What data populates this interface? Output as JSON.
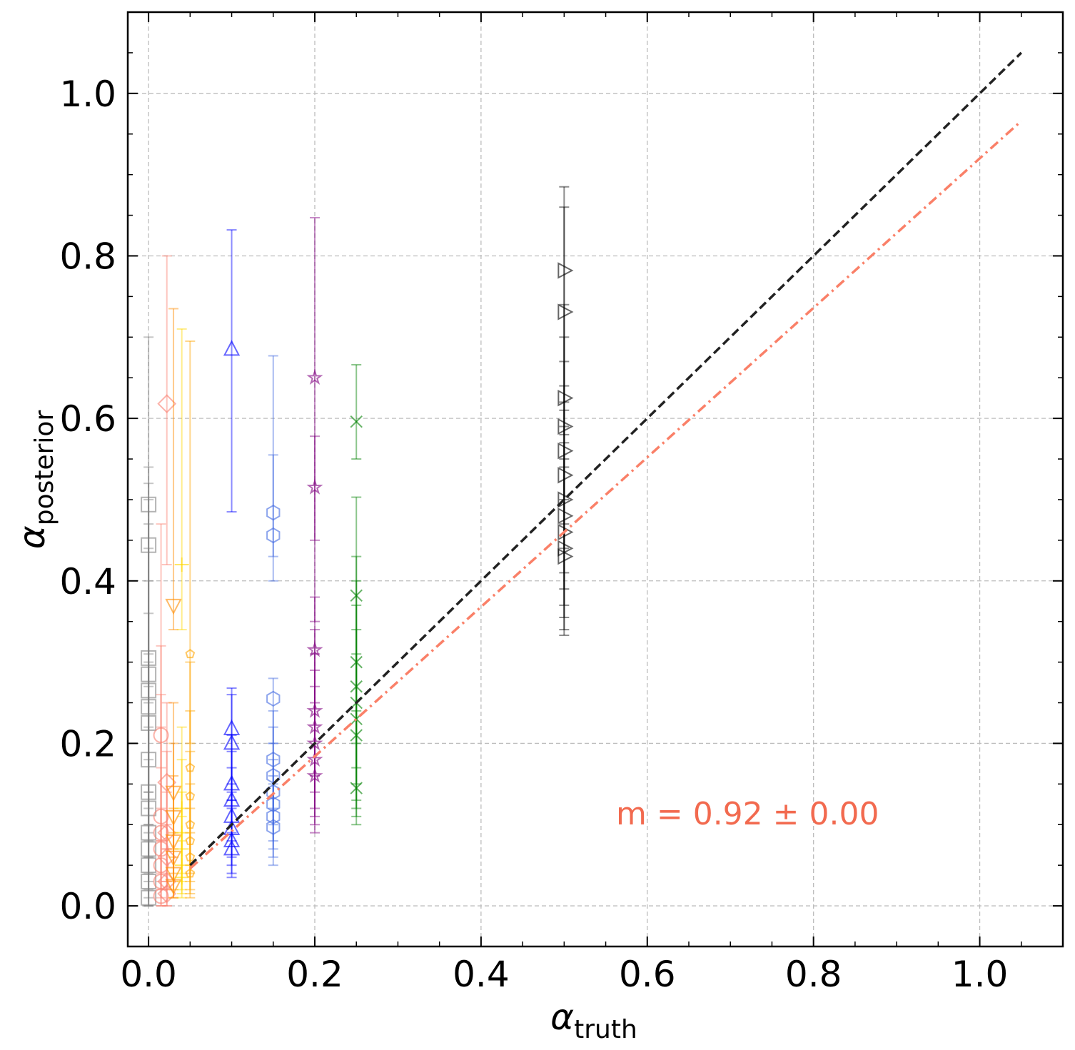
{
  "chart_data": {
    "type": "scatter",
    "xlabel": {
      "symbol": "α",
      "subscript": "truth"
    },
    "ylabel": {
      "symbol": "α",
      "subscript": "posterior"
    },
    "xlim": [
      -0.025,
      1.1
    ],
    "ylim": [
      -0.05,
      1.1
    ],
    "x_ticks": [
      0.0,
      0.2,
      0.4,
      0.6,
      0.8,
      1.0
    ],
    "y_ticks": [
      0.0,
      0.2,
      0.4,
      0.6,
      0.8,
      1.0
    ],
    "x_tick_labels": [
      "0.0",
      "0.2",
      "0.4",
      "0.6",
      "0.8",
      "1.0"
    ],
    "y_tick_labels": [
      "0.0",
      "0.2",
      "0.4",
      "0.6",
      "0.8",
      "1.0"
    ],
    "grid": true,
    "legend": "none",
    "annotation": {
      "text": "m = 0.92 ± 0.00",
      "color": "#f26a4f"
    },
    "reference_lines": [
      {
        "slope": 1.0,
        "intercept": 0.0,
        "x_range": [
          0.05,
          1.05
        ],
        "style": "dashed",
        "color": "#222222"
      },
      {
        "slope": 0.92,
        "intercept": 0.0,
        "x_range": [
          0.05,
          1.05
        ],
        "style": "dashdot",
        "color": "#fa8068"
      }
    ],
    "series": [
      {
        "x": 0.0,
        "color": "#808080",
        "marker": "square",
        "points": [
          [
            0.494,
            0.31,
            0.54
          ],
          [
            0.444,
            0.25,
            0.7
          ],
          [
            0.305,
            0.14,
            0.52
          ],
          [
            0.285,
            0.12,
            0.5
          ],
          [
            0.265,
            0.1,
            0.47
          ],
          [
            0.245,
            0.09,
            0.44
          ],
          [
            0.225,
            0.08,
            0.4
          ],
          [
            0.18,
            0.06,
            0.36
          ],
          [
            0.14,
            0.04,
            0.3
          ],
          [
            0.12,
            0.03,
            0.27
          ],
          [
            0.09,
            0.02,
            0.22
          ],
          [
            0.07,
            0.01,
            0.18
          ],
          [
            0.05,
            0.0,
            0.14
          ],
          [
            0.03,
            0.0,
            0.1
          ],
          [
            0.01,
            0.0,
            0.06
          ]
        ]
      },
      {
        "x": 0.015,
        "color": "#fa8072",
        "marker": "circle",
        "points": [
          [
            0.21,
            0.08,
            0.47
          ],
          [
            0.11,
            0.04,
            0.32
          ],
          [
            0.09,
            0.03,
            0.26
          ],
          [
            0.07,
            0.02,
            0.22
          ],
          [
            0.05,
            0.01,
            0.17
          ],
          [
            0.03,
            0.0,
            0.12
          ],
          [
            0.012,
            0.0,
            0.08
          ]
        ]
      },
      {
        "x": 0.022,
        "color": "#fa8072",
        "marker": "diamond",
        "points": [
          [
            0.618,
            0.42,
            0.8
          ],
          [
            0.152,
            0.07,
            0.25
          ],
          [
            0.09,
            0.03,
            0.19
          ],
          [
            0.06,
            0.02,
            0.14
          ],
          [
            0.03,
            0.0,
            0.1
          ],
          [
            0.015,
            0.0,
            0.07
          ]
        ]
      },
      {
        "x": 0.03,
        "color": "#ff8c00",
        "marker": "triangle_down",
        "points": [
          [
            0.37,
            0.34,
            0.735
          ],
          [
            0.14,
            0.06,
            0.25
          ],
          [
            0.11,
            0.04,
            0.2
          ],
          [
            0.08,
            0.03,
            0.16
          ],
          [
            0.06,
            0.02,
            0.12
          ],
          [
            0.04,
            0.01,
            0.09
          ],
          [
            0.025,
            0.01,
            0.07
          ]
        ]
      },
      {
        "x": 0.04,
        "color": "#ffd700",
        "marker": "plus",
        "points": [
          [
            0.42,
            0.34,
            0.71
          ],
          [
            0.12,
            0.04,
            0.22
          ],
          [
            0.09,
            0.03,
            0.18
          ],
          [
            0.07,
            0.02,
            0.14
          ],
          [
            0.05,
            0.015,
            0.11
          ],
          [
            0.035,
            0.01,
            0.08
          ]
        ]
      },
      {
        "x": 0.05,
        "color": "#ffa500",
        "marker": "pentagon",
        "points": [
          [
            0.31,
            0.2,
            0.695
          ],
          [
            0.17,
            0.05,
            0.3
          ],
          [
            0.135,
            0.04,
            0.24
          ],
          [
            0.1,
            0.03,
            0.19
          ],
          [
            0.08,
            0.02,
            0.15
          ],
          [
            0.06,
            0.015,
            0.12
          ],
          [
            0.04,
            0.01,
            0.09
          ]
        ]
      },
      {
        "x": 0.1,
        "color": "#0000ff",
        "marker": "triangle_up",
        "points": [
          [
            0.685,
            0.485,
            0.832
          ],
          [
            0.218,
            0.14,
            0.268
          ],
          [
            0.2,
            0.13,
            0.26
          ],
          [
            0.15,
            0.09,
            0.21
          ],
          [
            0.13,
            0.08,
            0.19
          ],
          [
            0.11,
            0.06,
            0.17
          ],
          [
            0.095,
            0.05,
            0.15
          ],
          [
            0.08,
            0.04,
            0.13
          ],
          [
            0.07,
            0.035,
            0.12
          ]
        ]
      },
      {
        "x": 0.15,
        "color": "#4169e1",
        "marker": "hexagon",
        "points": [
          [
            0.484,
            0.43,
            0.677
          ],
          [
            0.456,
            0.4,
            0.555
          ],
          [
            0.255,
            0.2,
            0.28
          ],
          [
            0.18,
            0.12,
            0.24
          ],
          [
            0.16,
            0.1,
            0.22
          ],
          [
            0.14,
            0.08,
            0.2
          ],
          [
            0.125,
            0.07,
            0.18
          ],
          [
            0.11,
            0.06,
            0.16
          ],
          [
            0.097,
            0.05,
            0.15
          ]
        ]
      },
      {
        "x": 0.2,
        "color": "#800080",
        "marker": "star",
        "points": [
          [
            0.65,
            0.45,
            0.847
          ],
          [
            0.515,
            0.35,
            0.578
          ],
          [
            0.315,
            0.16,
            0.38
          ],
          [
            0.24,
            0.14,
            0.34
          ],
          [
            0.22,
            0.12,
            0.31
          ],
          [
            0.2,
            0.11,
            0.29
          ],
          [
            0.18,
            0.1,
            0.27
          ],
          [
            0.16,
            0.09,
            0.25
          ]
        ]
      },
      {
        "x": 0.25,
        "color": "#008000",
        "marker": "x",
        "points": [
          [
            0.596,
            0.55,
            0.666
          ],
          [
            0.382,
            0.2,
            0.503
          ],
          [
            0.3,
            0.17,
            0.43
          ],
          [
            0.27,
            0.15,
            0.4
          ],
          [
            0.25,
            0.13,
            0.37
          ],
          [
            0.23,
            0.12,
            0.34
          ],
          [
            0.21,
            0.11,
            0.31
          ],
          [
            0.145,
            0.1,
            0.24
          ]
        ]
      },
      {
        "x": 0.5,
        "color": "#000000",
        "marker": "triangle_right",
        "points": [
          [
            0.782,
            0.62,
            0.885
          ],
          [
            0.731,
            0.58,
            0.86
          ],
          [
            0.625,
            0.5,
            0.74
          ],
          [
            0.59,
            0.47,
            0.7
          ],
          [
            0.56,
            0.44,
            0.67
          ],
          [
            0.53,
            0.41,
            0.64
          ],
          [
            0.5,
            0.39,
            0.61
          ],
          [
            0.48,
            0.37,
            0.59
          ],
          [
            0.46,
            0.355,
            0.57
          ],
          [
            0.44,
            0.34,
            0.55
          ],
          [
            0.43,
            0.333,
            0.54
          ]
        ]
      }
    ]
  }
}
